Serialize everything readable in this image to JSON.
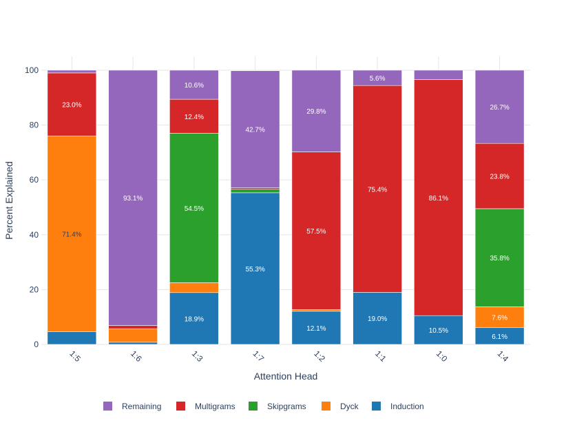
{
  "chart_data": {
    "type": "bar",
    "stacked": true,
    "title": "",
    "xlabel": "Attention Head",
    "ylabel": "Percent Explained",
    "ylim": [
      0,
      105
    ],
    "yticks": [
      0,
      20,
      40,
      60,
      80,
      100
    ],
    "categories": [
      "1:5",
      "1:6",
      "1:3",
      "1:7",
      "1:2",
      "1:1",
      "1:0",
      "1:4"
    ],
    "series": [
      {
        "name": "Induction",
        "color": "#1f77b4",
        "values": [
          4.6,
          0.8,
          18.9,
          55.3,
          12.1,
          19.0,
          10.5,
          6.1
        ],
        "labels": [
          "",
          "",
          "18.9%",
          "55.3%",
          "12.1%",
          "19.0%",
          "10.5%",
          "6.1%"
        ]
      },
      {
        "name": "Dyck",
        "color": "#ff7f0e",
        "values": [
          71.4,
          4.9,
          3.6,
          0.0,
          0.6,
          0.0,
          0.0,
          7.6
        ],
        "labels": [
          "71.4%",
          "",
          "",
          "",
          "",
          "",
          "",
          "7.6%"
        ]
      },
      {
        "name": "Skipgrams",
        "color": "#2ca02c",
        "values": [
          0.0,
          0.0,
          54.5,
          1.3,
          0.0,
          0.0,
          0.0,
          35.8
        ],
        "labels": [
          "",
          "",
          "54.5%",
          "",
          "",
          "",
          "",
          "35.8%"
        ]
      },
      {
        "name": "Multigrams",
        "color": "#d62728",
        "values": [
          23.0,
          1.2,
          12.4,
          0.5,
          57.5,
          75.4,
          86.1,
          23.8
        ],
        "labels": [
          "23.0%",
          "",
          "12.4%",
          "",
          "57.5%",
          "75.4%",
          "86.1%",
          "23.8%"
        ]
      },
      {
        "name": "Remaining",
        "color": "#9467bd",
        "values": [
          1.0,
          93.1,
          10.6,
          42.7,
          29.8,
          5.6,
          3.4,
          26.7
        ],
        "labels": [
          "",
          "93.1%",
          "10.6%",
          "42.7%",
          "29.8%",
          "5.6%",
          "",
          "26.7%"
        ]
      }
    ],
    "legend_order": [
      "Remaining",
      "Multigrams",
      "Skipgrams",
      "Dyck",
      "Induction"
    ],
    "legend_position": "bottom",
    "grid": true
  }
}
